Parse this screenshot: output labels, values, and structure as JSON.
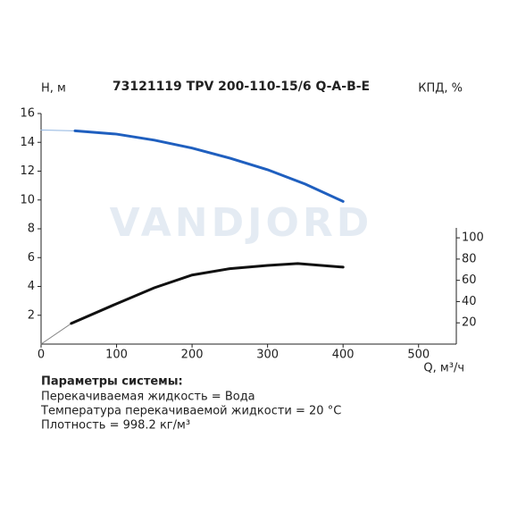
{
  "chart_data": {
    "type": "line",
    "title": "73121119 TPV 200-110-15/6 Q-A-B-E",
    "watermark": "VANDJORD",
    "y_label": "H, м",
    "y2_label": "КПД, %",
    "x_label": "Q, м³/ч",
    "xlim": [
      0,
      550
    ],
    "xticks": [
      0,
      100,
      200,
      300,
      400,
      500
    ],
    "ylim": [
      0,
      16
    ],
    "yticks": [
      2,
      4,
      6,
      8,
      10,
      12,
      14,
      16
    ],
    "y2lim": [
      0,
      217
    ],
    "y2ticks": [
      20,
      40,
      60,
      80,
      100
    ],
    "grid": false,
    "series": [
      {
        "color": "#8fb4e0",
        "width": 1,
        "x": [
          0,
          45
        ],
        "values": [
          14.85,
          14.8
        ]
      },
      {
        "color": "#1f5fbf",
        "width": 3,
        "x": [
          45,
          100,
          150,
          200,
          250,
          300,
          350,
          400
        ],
        "values": [
          14.8,
          14.57,
          14.15,
          13.6,
          12.9,
          12.1,
          11.1,
          9.9
        ]
      },
      {
        "color": "#888888",
        "width": 1,
        "axis": "y2",
        "x": [
          0,
          40
        ],
        "values": [
          0,
          19.4
        ]
      },
      {
        "color": "#111111",
        "width": 3,
        "axis": "y2",
        "x": [
          40,
          100,
          150,
          200,
          250,
          300,
          340,
          400
        ],
        "values": [
          19.4,
          38,
          53,
          65,
          71,
          74,
          75.8,
          72.4
        ]
      }
    ],
    "params": {
      "heading": "Параметры системы:",
      "lines": [
        "Перекачиваемая жидкость = Вода",
        "Температура перекачиваемой жидкости = 20 °C",
        "Плотность = 998.2 кг/м³"
      ]
    }
  }
}
